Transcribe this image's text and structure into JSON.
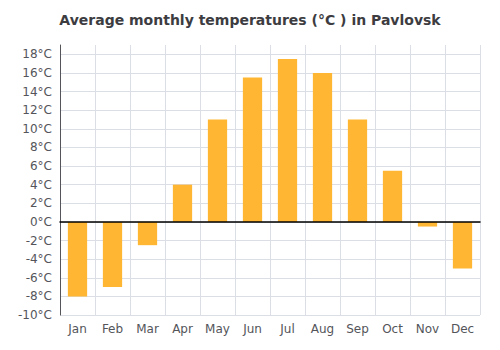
{
  "chart_data": {
    "type": "bar",
    "title": "Average monthly temperatures (°C ) in Pavlovsk",
    "categories": [
      "Jan",
      "Feb",
      "Mar",
      "Apr",
      "May",
      "Jun",
      "Jul",
      "Aug",
      "Sep",
      "Oct",
      "Nov",
      "Dec"
    ],
    "values": [
      -8,
      -7,
      -2.5,
      4,
      11,
      15.5,
      17.5,
      16,
      11,
      5.5,
      -0.5,
      -5
    ],
    "color": "#FFB733",
    "ylim": [
      -10,
      19
    ],
    "yticks": [
      {
        "value": -10,
        "label": "-10°C"
      },
      {
        "value": -8,
        "label": "-8°C"
      },
      {
        "value": -6,
        "label": "-6°C"
      },
      {
        "value": -4,
        "label": "-4°C"
      },
      {
        "value": -2,
        "label": "-2°C"
      },
      {
        "value": 0,
        "label": "0°C"
      },
      {
        "value": 2,
        "label": "2°C"
      },
      {
        "value": 4,
        "label": "4°C"
      },
      {
        "value": 6,
        "label": "6°C"
      },
      {
        "value": 8,
        "label": "8°C"
      },
      {
        "value": 10,
        "label": "10°C"
      },
      {
        "value": 12,
        "label": "12°C"
      },
      {
        "value": 14,
        "label": "14°C"
      },
      {
        "value": 16,
        "label": "16°C"
      },
      {
        "value": 18,
        "label": "18°C"
      }
    ],
    "grid": true
  }
}
